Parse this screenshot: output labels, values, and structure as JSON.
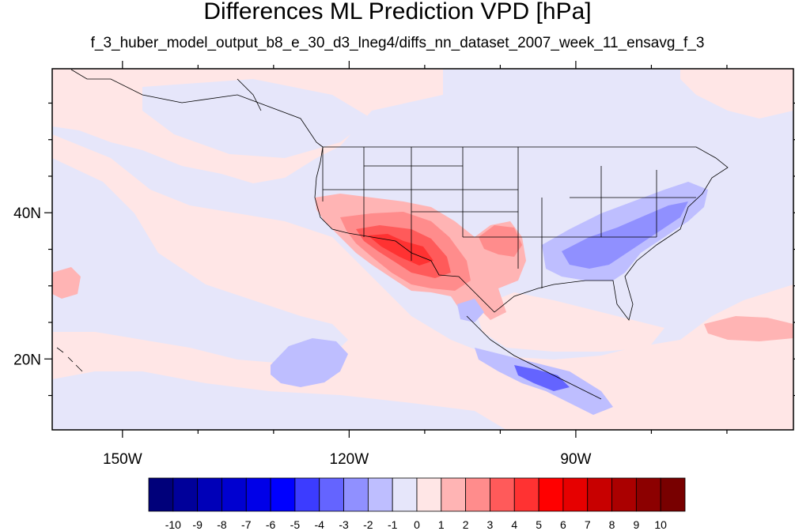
{
  "title": "Differences ML Prediction VPD [hPa]",
  "subtitle": "f_3_huber_model_output_b8_e_30_d3_lneg4/diffs_nn_dataset_2007_week_11_ensavg_f_3",
  "map": {
    "projection": "lat-lon",
    "lon_range": [
      -159.3,
      -61.2
    ],
    "lat_range": [
      10.3,
      59.7
    ],
    "lon_ticks": [
      {
        "value": -150,
        "label": "150W"
      },
      {
        "value": -120,
        "label": "120W"
      },
      {
        "value": -90,
        "label": "90W"
      }
    ],
    "lat_ticks": [
      {
        "value": 40,
        "label": "40N"
      },
      {
        "value": 20,
        "label": "20N"
      }
    ],
    "background_color": "#e6e6fa"
  },
  "colorbar": {
    "levels": [
      "-10",
      "-9",
      "-8",
      "-7",
      "-6",
      "-5",
      "-4",
      "-3",
      "-2",
      "-1",
      "0",
      "1",
      "2",
      "3",
      "4",
      "5",
      "6",
      "7",
      "8",
      "9",
      "10"
    ],
    "colors": [
      "#00007a",
      "#00009a",
      "#0000b8",
      "#0000d0",
      "#0000e8",
      "#0000ff",
      "#3c3cff",
      "#6464ff",
      "#9090ff",
      "#bebeff",
      "#e6e6fa",
      "#ffe6e6",
      "#ffb4b4",
      "#ff8c8c",
      "#ff5a5a",
      "#ff3232",
      "#ff0000",
      "#e60000",
      "#c80000",
      "#aa0000",
      "#8c0000",
      "#780000"
    ]
  }
}
